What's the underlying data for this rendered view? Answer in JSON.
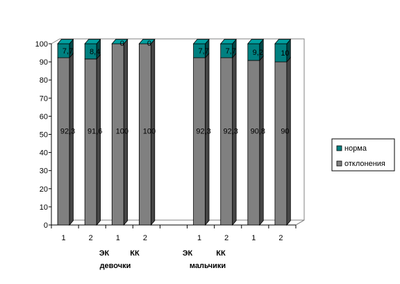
{
  "chart_data": {
    "type": "bar",
    "stacked": true,
    "three_d": true,
    "categories": [
      "1",
      "2",
      "1",
      "2",
      "1",
      "2",
      "1",
      "2"
    ],
    "category_gap_after": [
      3
    ],
    "series": [
      {
        "name": "отклонения",
        "color": "#808080",
        "values": [
          92.3,
          91.6,
          100,
          100,
          92.3,
          92.3,
          90.8,
          90
        ],
        "labels": [
          "92,3",
          "91,6",
          "100",
          "100",
          "92,3",
          "92,3",
          "90,8",
          "90"
        ]
      },
      {
        "name": "норма",
        "color": "#008080",
        "values": [
          7.7,
          8.4,
          0,
          0,
          7.7,
          7.7,
          9.2,
          10
        ],
        "labels": [
          "7,7",
          "8,4",
          "0",
          "0",
          "7,7",
          "7,7",
          "9,2",
          "10"
        ]
      }
    ],
    "ylim": [
      0,
      100
    ],
    "yticks": [
      0,
      10,
      20,
      30,
      40,
      50,
      60,
      70,
      80,
      90,
      100
    ],
    "grid": false,
    "legend": {
      "placement": "right",
      "order": [
        "норма",
        "отклонения"
      ]
    },
    "group_labels": [
      {
        "sub": [
          "ЭК",
          "КК"
        ],
        "name": "девочки"
      },
      {
        "sub": [
          "ЭК",
          "КК"
        ],
        "name": "мальчики"
      }
    ]
  }
}
